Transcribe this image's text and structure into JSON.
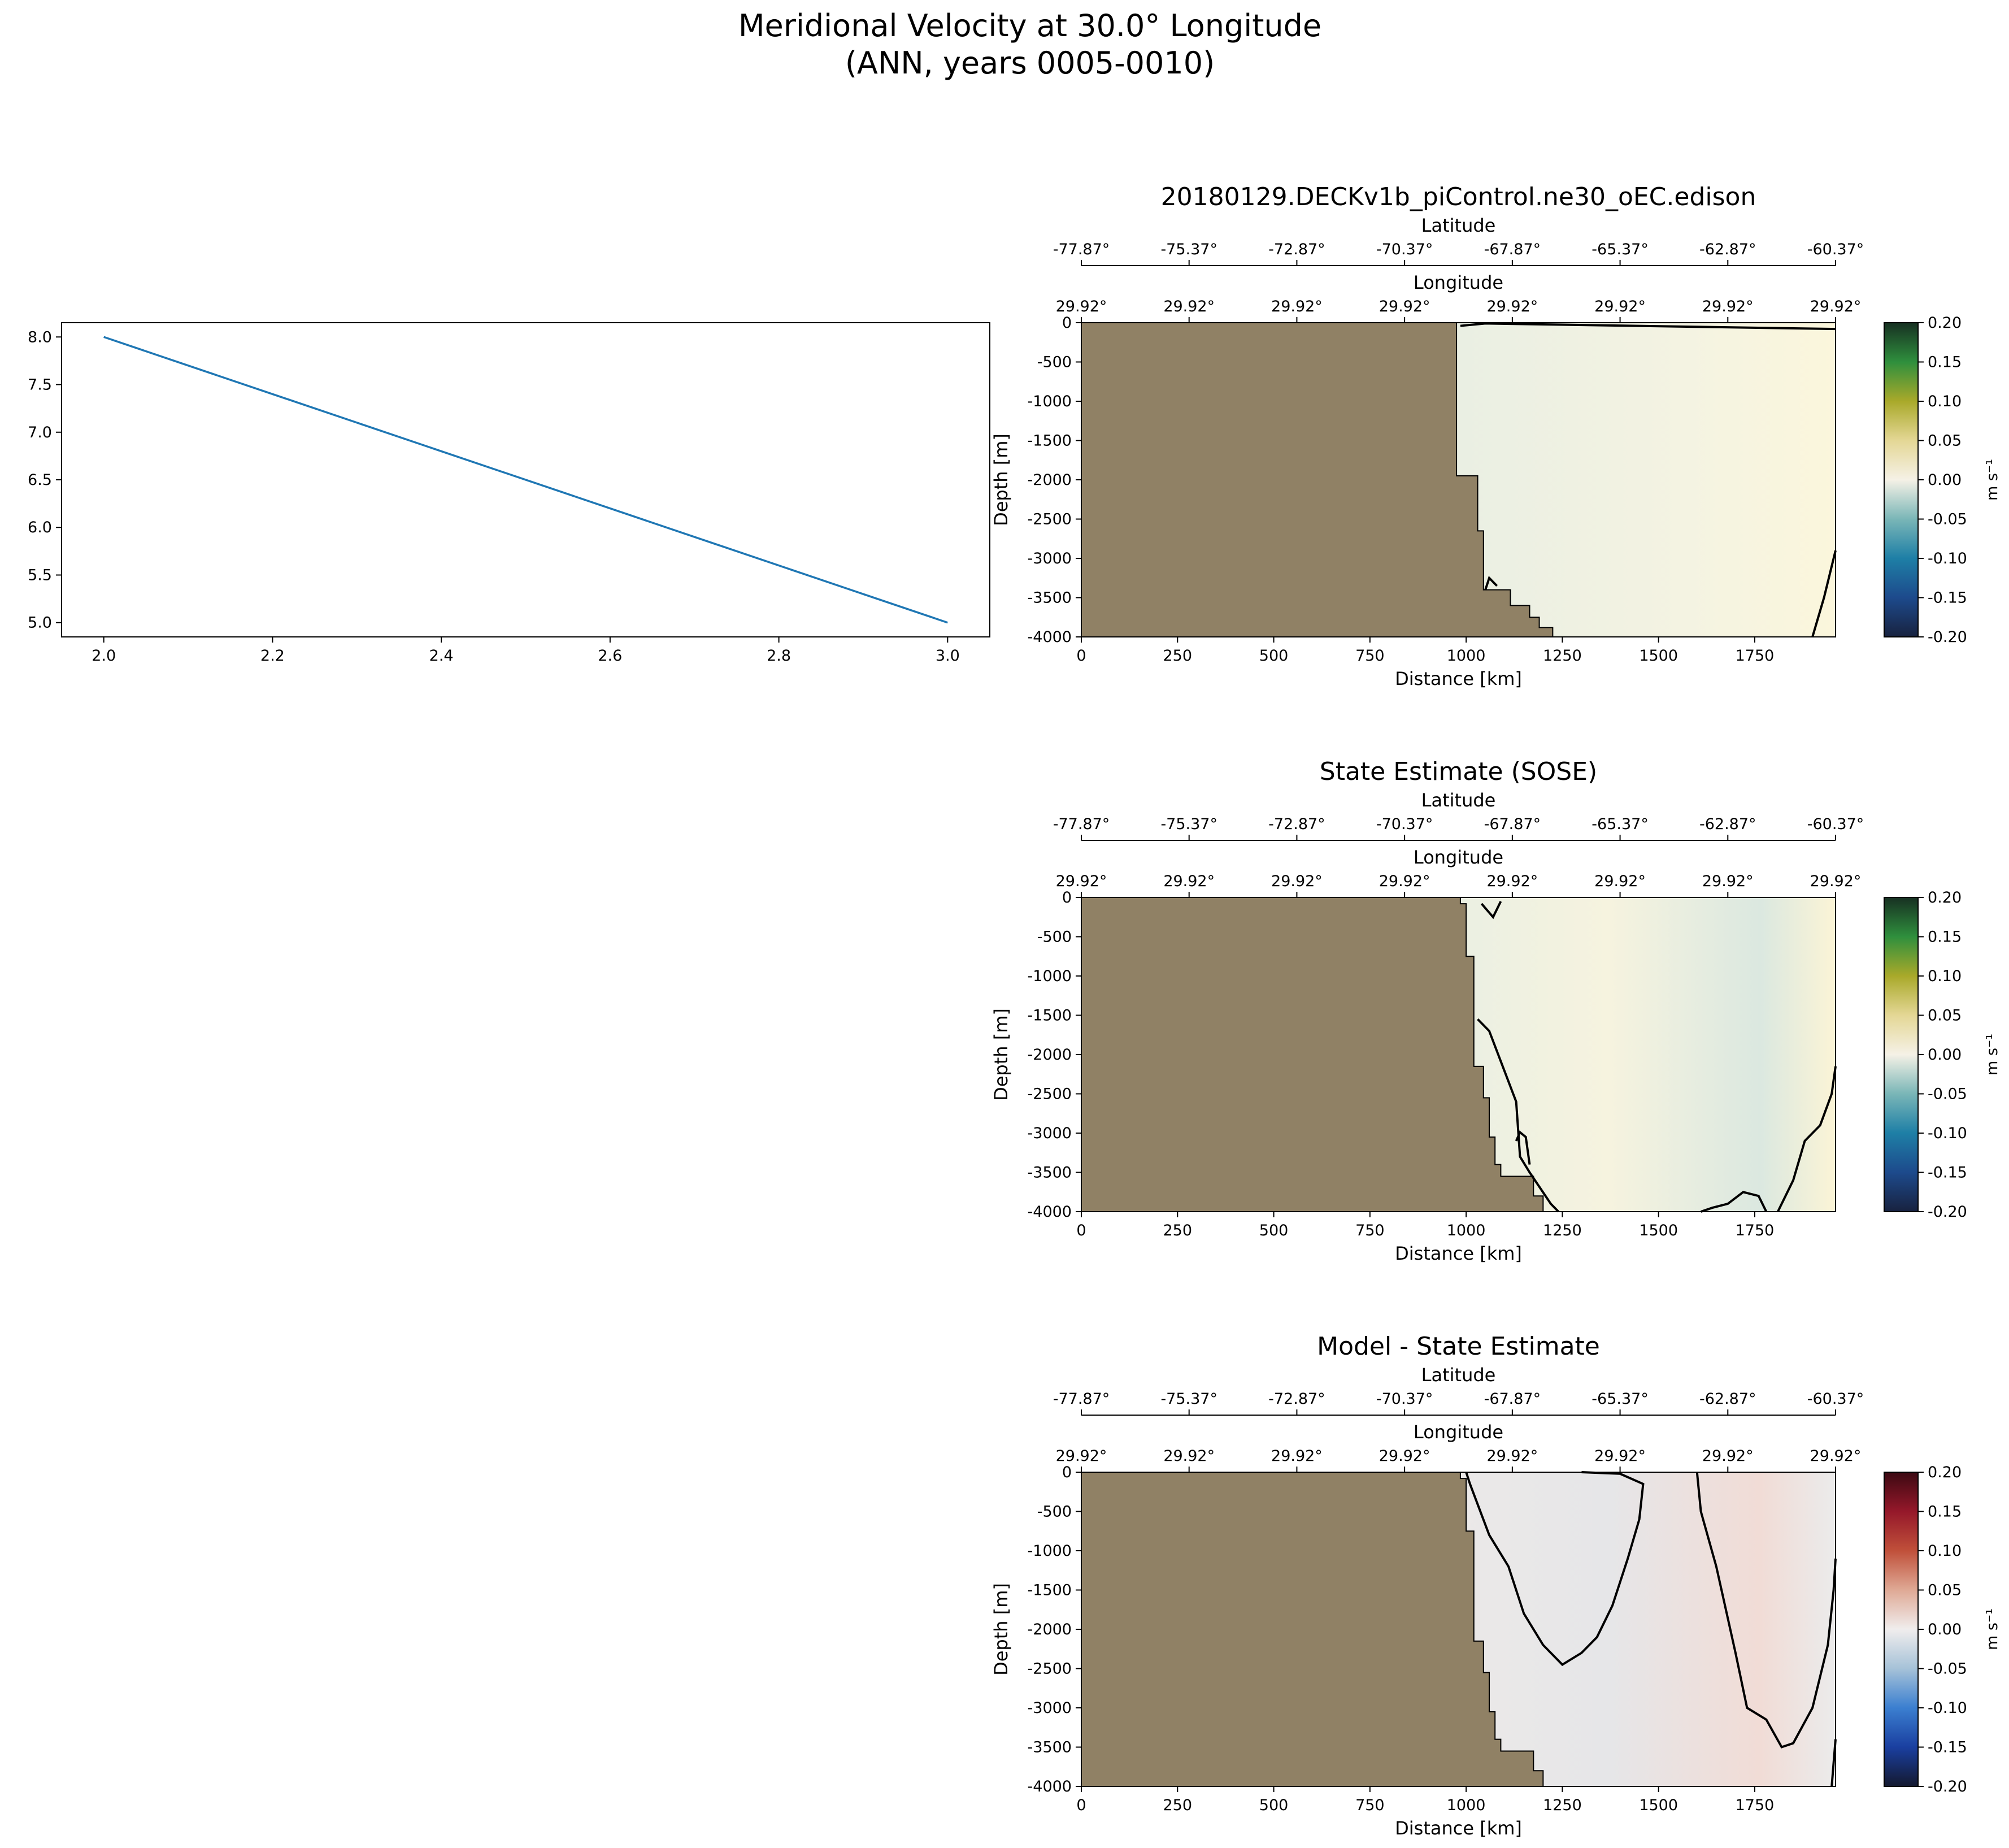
{
  "figure": {
    "suptitle_line1": "Meridional Velocity at 30.0° Longitude",
    "suptitle_line2": "(ANN, years 0005-0010)"
  },
  "chart_data": [
    {
      "type": "line",
      "panel": "left",
      "x": [
        2.0,
        3.0
      ],
      "series": [
        {
          "values": [
            8.0,
            5.0
          ]
        }
      ],
      "xlim": [
        1.95,
        3.05
      ],
      "ylim": [
        4.85,
        8.15
      ],
      "xticks": [
        "2.0",
        "2.2",
        "2.4",
        "2.6",
        "2.8",
        "3.0"
      ],
      "yticks": [
        "5.0",
        "5.5",
        "6.0",
        "6.5",
        "7.0",
        "7.5",
        "8.0"
      ],
      "line_color": "#1f77b4"
    },
    {
      "type": "heatmap",
      "panel": "model",
      "title": "20180129.DECKv1b_piControl.ne30_oEC.edison",
      "xlabel": "Distance [km]",
      "ylabel": "Depth [m]",
      "lat_label": "Latitude",
      "lon_label": "Longitude",
      "lat_ticks": [
        "-77.87°",
        "-75.37°",
        "-72.87°",
        "-70.37°",
        "-67.87°",
        "-65.37°",
        "-62.87°",
        "-60.37°"
      ],
      "lon_ticks": [
        "29.92°",
        "29.92°",
        "29.92°",
        "29.92°",
        "29.92°",
        "29.92°",
        "29.92°",
        "29.92°"
      ],
      "xticks": [
        "0",
        "250",
        "500",
        "750",
        "1000",
        "1250",
        "1500",
        "1750"
      ],
      "yticks": [
        "0",
        "-500",
        "-1000",
        "-1500",
        "-2000",
        "-2500",
        "-3000",
        "-3500",
        "-4000"
      ],
      "xlim": [
        0,
        1960
      ],
      "ylim": [
        -4000,
        0
      ],
      "colorbar": {
        "label": "m s⁻¹",
        "ticks": [
          "0.20",
          "0.15",
          "0.10",
          "0.05",
          "0.00",
          "-0.05",
          "-0.10",
          "-0.15",
          "-0.20"
        ],
        "range": [
          -0.2,
          0.2
        ],
        "colormap": "ocean-balance",
        "colors": [
          "#18223f",
          "#1d4a8c",
          "#1e7fa6",
          "#7ab6b7",
          "#f5f1e6",
          "#e4d795",
          "#a9a92a",
          "#2f8f3d",
          "#173022"
        ]
      },
      "land_color": "#908165",
      "bathymetry_km_depth": [
        [
          975,
          0
        ],
        [
          975,
          -1950
        ],
        [
          1030,
          -1950
        ],
        [
          1030,
          -2650
        ],
        [
          1045,
          -2650
        ],
        [
          1045,
          -3400
        ],
        [
          1115,
          -3400
        ],
        [
          1115,
          -3600
        ],
        [
          1165,
          -3600
        ],
        [
          1165,
          -3750
        ],
        [
          1190,
          -3750
        ],
        [
          1190,
          -3880
        ],
        [
          1225,
          -3880
        ],
        [
          1225,
          -4000
        ]
      ]
    },
    {
      "type": "heatmap",
      "panel": "obs",
      "title": "State Estimate (SOSE)",
      "xlabel": "Distance [km]",
      "ylabel": "Depth [m]",
      "lat_label": "Latitude",
      "lon_label": "Longitude",
      "lat_ticks": [
        "-77.87°",
        "-75.37°",
        "-72.87°",
        "-70.37°",
        "-67.87°",
        "-65.37°",
        "-62.87°",
        "-60.37°"
      ],
      "lon_ticks": [
        "29.92°",
        "29.92°",
        "29.92°",
        "29.92°",
        "29.92°",
        "29.92°",
        "29.92°",
        "29.92°"
      ],
      "xticks": [
        "0",
        "250",
        "500",
        "750",
        "1000",
        "1250",
        "1500",
        "1750"
      ],
      "yticks": [
        "0",
        "-500",
        "-1000",
        "-1500",
        "-2000",
        "-2500",
        "-3000",
        "-3500",
        "-4000"
      ],
      "xlim": [
        0,
        1960
      ],
      "ylim": [
        -4000,
        0
      ],
      "colorbar": {
        "label": "m s⁻¹",
        "ticks": [
          "0.20",
          "0.15",
          "0.10",
          "0.05",
          "0.00",
          "-0.05",
          "-0.10",
          "-0.15",
          "-0.20"
        ],
        "range": [
          -0.2,
          0.2
        ],
        "colormap": "ocean-balance",
        "colors": [
          "#18223f",
          "#1d4a8c",
          "#1e7fa6",
          "#7ab6b7",
          "#f5f1e6",
          "#e4d795",
          "#a9a92a",
          "#2f8f3d",
          "#173022"
        ]
      },
      "land_color": "#908165",
      "bathymetry_km_depth": [
        [
          985,
          0
        ],
        [
          985,
          -80
        ],
        [
          1000,
          -80
        ],
        [
          1000,
          -750
        ],
        [
          1020,
          -750
        ],
        [
          1020,
          -2150
        ],
        [
          1045,
          -2150
        ],
        [
          1045,
          -2550
        ],
        [
          1060,
          -2550
        ],
        [
          1060,
          -3050
        ],
        [
          1075,
          -3050
        ],
        [
          1075,
          -3400
        ],
        [
          1090,
          -3400
        ],
        [
          1090,
          -3550
        ],
        [
          1175,
          -3550
        ],
        [
          1175,
          -3800
        ],
        [
          1200,
          -3800
        ],
        [
          1200,
          -4000
        ]
      ]
    },
    {
      "type": "heatmap",
      "panel": "diff",
      "title": "Model - State Estimate",
      "xlabel": "Distance [km]",
      "ylabel": "Depth [m]",
      "lat_label": "Latitude",
      "lon_label": "Longitude",
      "lat_ticks": [
        "-77.87°",
        "-75.37°",
        "-72.87°",
        "-70.37°",
        "-67.87°",
        "-65.37°",
        "-62.87°",
        "-60.37°"
      ],
      "lon_ticks": [
        "29.92°",
        "29.92°",
        "29.92°",
        "29.92°",
        "29.92°",
        "29.92°",
        "29.92°",
        "29.92°"
      ],
      "xticks": [
        "0",
        "250",
        "500",
        "750",
        "1000",
        "1250",
        "1500",
        "1750"
      ],
      "yticks": [
        "0",
        "-500",
        "-1000",
        "-1500",
        "-2000",
        "-2500",
        "-3000",
        "-3500",
        "-4000"
      ],
      "xlim": [
        0,
        1960
      ],
      "ylim": [
        -4000,
        0
      ],
      "colorbar": {
        "label": "m s⁻¹",
        "ticks": [
          "0.20",
          "0.15",
          "0.10",
          "0.05",
          "0.00",
          "-0.05",
          "-0.10",
          "-0.15",
          "-0.20"
        ],
        "range": [
          -0.2,
          0.2
        ],
        "colormap": "balance",
        "colors": [
          "#14192f",
          "#1a3fa0",
          "#3b7fd0",
          "#a6c2d8",
          "#f0eded",
          "#dfa995",
          "#c0503a",
          "#95182a",
          "#3c0912"
        ]
      },
      "land_color": "#908165",
      "bathymetry_km_depth": [
        [
          985,
          0
        ],
        [
          985,
          -80
        ],
        [
          1000,
          -80
        ],
        [
          1000,
          -750
        ],
        [
          1020,
          -750
        ],
        [
          1020,
          -2150
        ],
        [
          1045,
          -2150
        ],
        [
          1045,
          -2550
        ],
        [
          1060,
          -2550
        ],
        [
          1060,
          -3050
        ],
        [
          1075,
          -3050
        ],
        [
          1075,
          -3400
        ],
        [
          1090,
          -3400
        ],
        [
          1090,
          -3550
        ],
        [
          1175,
          -3550
        ],
        [
          1175,
          -3800
        ],
        [
          1200,
          -3800
        ],
        [
          1200,
          -4000
        ]
      ]
    }
  ]
}
